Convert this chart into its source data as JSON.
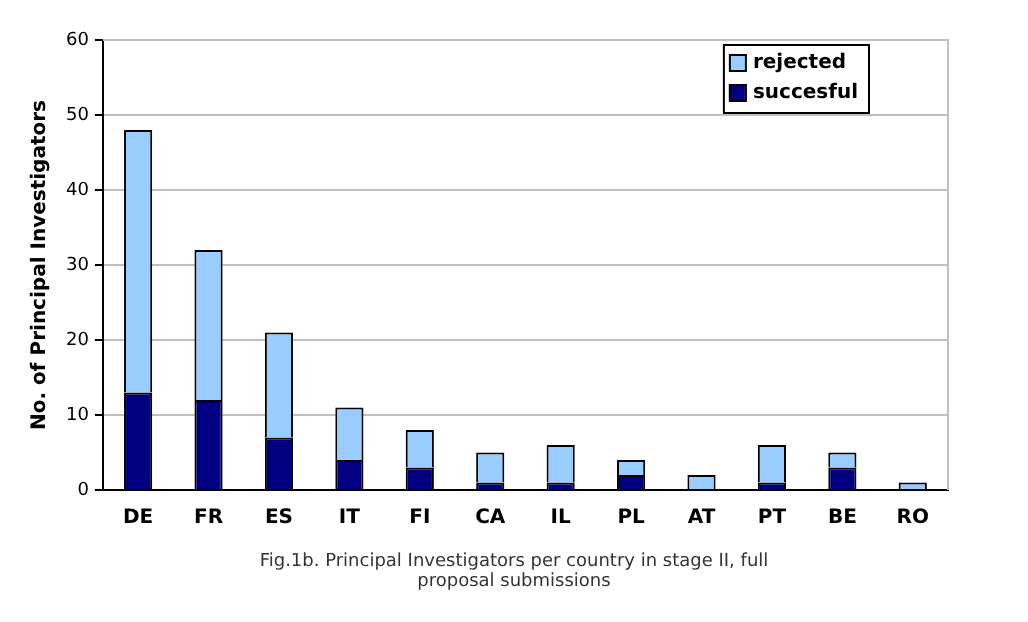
{
  "chart_data": {
    "type": "bar",
    "stacked": true,
    "ylabel": "No. of Principal Investigators",
    "categories": [
      "DE",
      "FR",
      "ES",
      "IT",
      "FI",
      "CA",
      "IL",
      "PL",
      "AT",
      "PT",
      "BE",
      "RO"
    ],
    "series": [
      {
        "name": "succesful",
        "color": "#000080",
        "values": [
          13,
          12,
          7,
          4,
          3,
          1,
          1,
          2,
          0,
          1,
          3,
          0
        ]
      },
      {
        "name": "rejected",
        "color": "#99ccff",
        "values": [
          35,
          20,
          14,
          7,
          5,
          4,
          5,
          2,
          2,
          5,
          2,
          1
        ]
      }
    ],
    "ylim": [
      0,
      60
    ],
    "yticks": [
      0,
      10,
      20,
      30,
      40,
      50,
      60
    ],
    "grid": "y",
    "legend": "top right",
    "annotations": [
      "Fig.1b. Principal Investigators per country in stage II, full proposal submissions"
    ]
  }
}
